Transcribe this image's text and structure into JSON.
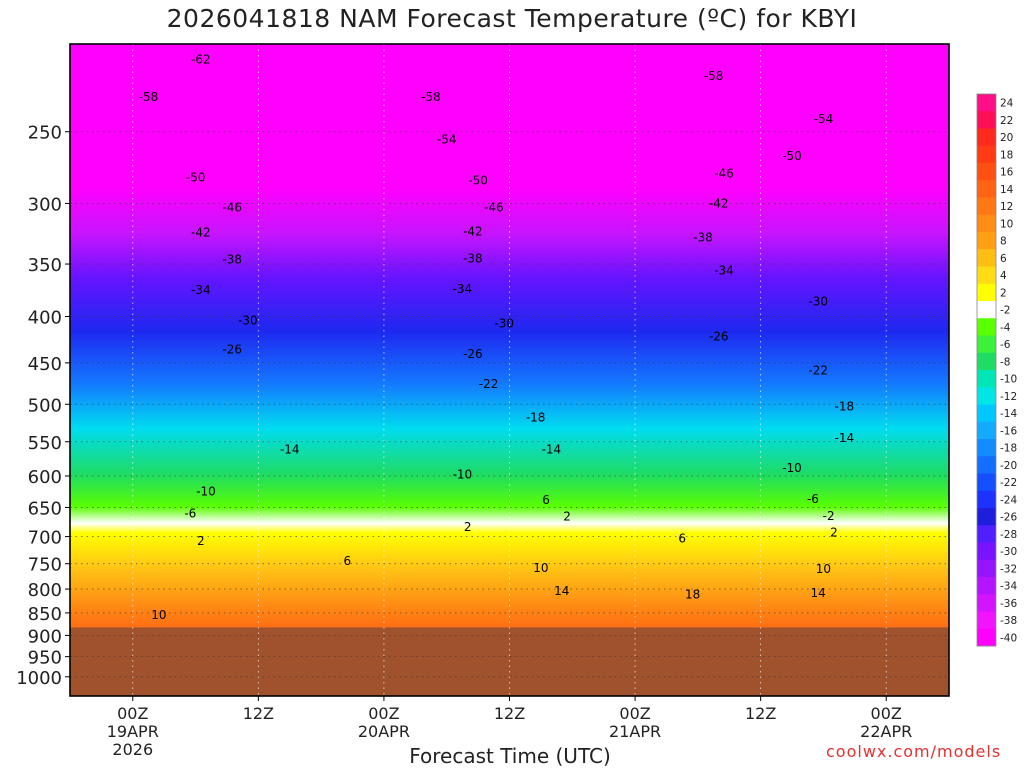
{
  "chart_data": {
    "type": "heatmap",
    "title": "2026041818 NAM Forecast Temperature (ºC) for KBYI",
    "xlabel": "Forecast Time (UTC)",
    "ylabel": "",
    "y_axis_ticks": [
      250,
      300,
      350,
      400,
      450,
      500,
      550,
      600,
      650,
      700,
      750,
      800,
      850,
      900,
      950,
      1000
    ],
    "y_axis_unit": "hPa",
    "ylim": [
      1050,
      200
    ],
    "x_axis_ticks": [
      {
        "time": "00Z",
        "date": "19APR",
        "year": "2026",
        "hour": 6
      },
      {
        "time": "12Z",
        "date": "",
        "year": "",
        "hour": 18
      },
      {
        "time": "00Z",
        "date": "20APR",
        "year": "",
        "hour": 30
      },
      {
        "time": "12Z",
        "date": "",
        "year": "",
        "hour": 42
      },
      {
        "time": "00Z",
        "date": "21APR",
        "year": "",
        "hour": 54
      },
      {
        "time": "12Z",
        "date": "",
        "year": "",
        "hour": 66
      },
      {
        "time": "00Z",
        "date": "22APR",
        "year": "",
        "hour": 78
      }
    ],
    "xlim": [
      0,
      84
    ],
    "colorbar_labels": [
      24,
      22,
      20,
      18,
      16,
      14,
      12,
      10,
      8,
      6,
      4,
      2,
      -2,
      -4,
      -6,
      -8,
      -10,
      -12,
      -14,
      -16,
      -18,
      -20,
      -22,
      -24,
      -26,
      -28,
      -30,
      -32,
      -34,
      -36,
      -38,
      -40
    ],
    "colorbar_colors": [
      "#ff0f87",
      "#ff0f55",
      "#ff2a1e",
      "#ff3c14",
      "#ff5014",
      "#ff6414",
      "#ff7814",
      "#ff8c14",
      "#ffa014",
      "#ffbe14",
      "#ffdc14",
      "#ffff00",
      "#ffffff",
      "#5aff00",
      "#3cf03c",
      "#1edc64",
      "#00e6b4",
      "#00e6e6",
      "#00c8ff",
      "#14aaff",
      "#148cff",
      "#146eff",
      "#1450ff",
      "#1e32ff",
      "#1e1edc",
      "#501eff",
      "#7814ff",
      "#9614ff",
      "#b414ff",
      "#d214ff",
      "#f014ff",
      "#ff00ff"
    ],
    "contour_labels": [
      {
        "value": -62,
        "hour": 12.5,
        "pressure": 208
      },
      {
        "value": -58,
        "hour": 7.5,
        "pressure": 229
      },
      {
        "value": -58,
        "hour": 34.5,
        "pressure": 229
      },
      {
        "value": -58,
        "hour": 61.5,
        "pressure": 217
      },
      {
        "value": -54,
        "hour": 36,
        "pressure": 255
      },
      {
        "value": -54,
        "hour": 72,
        "pressure": 242
      },
      {
        "value": -50,
        "hour": 12,
        "pressure": 281
      },
      {
        "value": -50,
        "hour": 39,
        "pressure": 283
      },
      {
        "value": -50,
        "hour": 69,
        "pressure": 266
      },
      {
        "value": -46,
        "hour": 15.5,
        "pressure": 303
      },
      {
        "value": -46,
        "hour": 40.5,
        "pressure": 303
      },
      {
        "value": -46,
        "hour": 62.5,
        "pressure": 278
      },
      {
        "value": -42,
        "hour": 12.5,
        "pressure": 323
      },
      {
        "value": -42,
        "hour": 38.5,
        "pressure": 322
      },
      {
        "value": -42,
        "hour": 62,
        "pressure": 300
      },
      {
        "value": -38,
        "hour": 15.5,
        "pressure": 346
      },
      {
        "value": -38,
        "hour": 38.5,
        "pressure": 345
      },
      {
        "value": -38,
        "hour": 60.5,
        "pressure": 327
      },
      {
        "value": -34,
        "hour": 12.5,
        "pressure": 374
      },
      {
        "value": -34,
        "hour": 37.5,
        "pressure": 373
      },
      {
        "value": -34,
        "hour": 62.5,
        "pressure": 356
      },
      {
        "value": -30,
        "hour": 17,
        "pressure": 404
      },
      {
        "value": -30,
        "hour": 41.5,
        "pressure": 407
      },
      {
        "value": -30,
        "hour": 71.5,
        "pressure": 385
      },
      {
        "value": -26,
        "hour": 15.5,
        "pressure": 435
      },
      {
        "value": -26,
        "hour": 38.5,
        "pressure": 440
      },
      {
        "value": -26,
        "hour": 62,
        "pressure": 421
      },
      {
        "value": -22,
        "hour": 40,
        "pressure": 475
      },
      {
        "value": -22,
        "hour": 71.5,
        "pressure": 459
      },
      {
        "value": -18,
        "hour": 44.5,
        "pressure": 517
      },
      {
        "value": -18,
        "hour": 74,
        "pressure": 503
      },
      {
        "value": -14,
        "hour": 21,
        "pressure": 561
      },
      {
        "value": -14,
        "hour": 46,
        "pressure": 561
      },
      {
        "value": -14,
        "hour": 74,
        "pressure": 545
      },
      {
        "value": -10,
        "hour": 13,
        "pressure": 624
      },
      {
        "value": -10,
        "hour": 37.5,
        "pressure": 598
      },
      {
        "value": -10,
        "hour": 69,
        "pressure": 588
      },
      {
        "value": -6,
        "hour": 11.5,
        "pressure": 660
      },
      {
        "value": 6,
        "hour": 45.5,
        "pressure": 638
      },
      {
        "value": -6,
        "hour": 71,
        "pressure": 636
      },
      {
        "value": 2,
        "hour": 12.5,
        "pressure": 708
      },
      {
        "value": 2,
        "hour": 47.5,
        "pressure": 665
      },
      {
        "value": 2,
        "hour": 38,
        "pressure": 683
      },
      {
        "value": -2,
        "hour": 72.5,
        "pressure": 664
      },
      {
        "value": 2,
        "hour": 73,
        "pressure": 693
      },
      {
        "value": 6,
        "hour": 26.5,
        "pressure": 745
      },
      {
        "value": 6,
        "hour": 58.5,
        "pressure": 703
      },
      {
        "value": 10,
        "hour": 45,
        "pressure": 758
      },
      {
        "value": 10,
        "hour": 72,
        "pressure": 760
      },
      {
        "value": 10,
        "hour": 8.5,
        "pressure": 854
      },
      {
        "value": 14,
        "hour": 47,
        "pressure": 804
      },
      {
        "value": 14,
        "hour": 71.5,
        "pressure": 808
      },
      {
        "value": 18,
        "hour": 59.5,
        "pressure": 811
      }
    ],
    "grid": true,
    "surface_pressure": 882,
    "legend": "right colorbar"
  },
  "credit": "coolwx.com/models"
}
